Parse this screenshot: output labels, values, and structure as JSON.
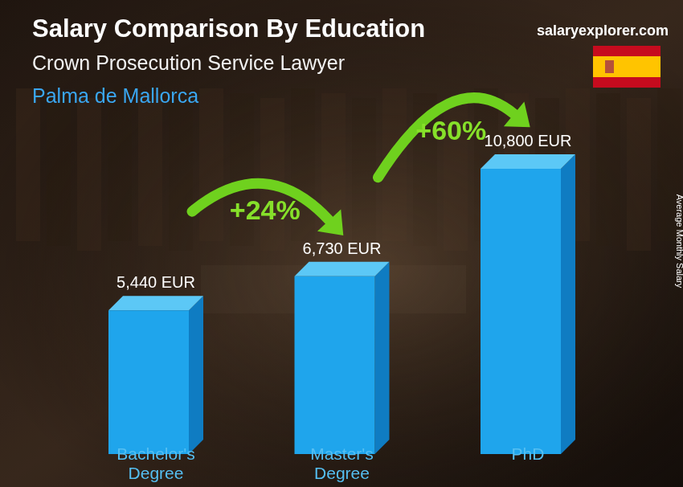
{
  "chart_data": {
    "type": "bar",
    "title": "Salary Comparison By Education",
    "subtitle": "Crown Prosecution Service Lawyer",
    "location": "Palma de Mallorca",
    "source": "salaryexplorer.com",
    "y_label": "Average Monthly Salary",
    "categories": [
      "Bachelor's Degree",
      "Master's Degree",
      "PhD"
    ],
    "values": [
      5440,
      6730,
      10800
    ],
    "value_labels": [
      "5,440 EUR",
      "6,730 EUR",
      "10,800 EUR"
    ],
    "data_labels": true,
    "annotations": [
      "+24%",
      "+60%"
    ],
    "color": "#1fa5ec",
    "tick_labels": false
  }
}
